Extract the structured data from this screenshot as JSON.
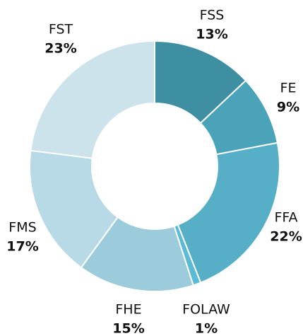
{
  "chart_data": {
    "type": "donut",
    "categories": [
      "FSS",
      "FE",
      "FFA",
      "FOLAW",
      "FHE",
      "FMS",
      "FST"
    ],
    "values": [
      13,
      9,
      22,
      1,
      15,
      17,
      23
    ],
    "value_labels": [
      "13%",
      "9%",
      "22%",
      "1%",
      "15%",
      "17%",
      "23%"
    ],
    "colors": [
      "#3f8fa3",
      "#4aa3b8",
      "#56afc6",
      "#5bbbd6",
      "#9ccbdc",
      "#b8d9e6",
      "#cde3ec"
    ]
  }
}
